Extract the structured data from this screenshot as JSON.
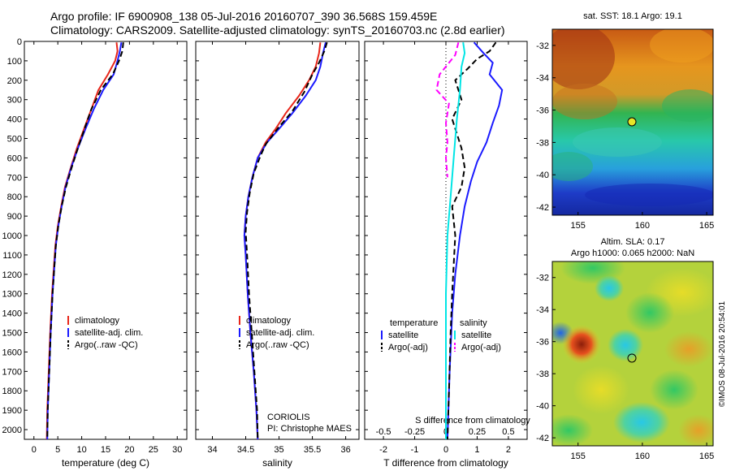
{
  "figure": {
    "title_line1": "Argo profile: IF 6900908_138 05-Jul-2016 20160707_390 36.568S 159.459E",
    "title_line2": "Climatology: CARS2009. Satellite-adjusted climatology: synTS_20160703.nc (2.8d earlier)",
    "credit": "©IMOS 08-Jul-2016 20:54:01",
    "colors": {
      "climatology": "#e8261a",
      "satellite": "#1a1aff",
      "argo": "#000000",
      "sat_salinity": "#00e5e5",
      "argo_salinity": "#ff00ff"
    }
  },
  "chart_data": [
    {
      "type": "line",
      "panel": "temperature",
      "xlabel": "temperature (deg C)",
      "ylabel": "",
      "xlim": [
        -2,
        32
      ],
      "ylim": [
        2050,
        0
      ],
      "xticks": [
        "0",
        "5",
        "10",
        "15",
        "20",
        "25",
        "30"
      ],
      "yticks": [
        "0",
        "100",
        "200",
        "300",
        "400",
        "500",
        "600",
        "700",
        "800",
        "900",
        "1000",
        "1100",
        "1200",
        "1300",
        "1400",
        "1500",
        "1600",
        "1700",
        "1800",
        "1900",
        "2000"
      ],
      "legend": [
        "climatology",
        "satellite-adj. clim.",
        "Argo(..raw -QC)"
      ],
      "series": [
        {
          "name": "climatology",
          "style": "solid",
          "color": "#e8261a",
          "points": [
            [
              17.3,
              5
            ],
            [
              17.5,
              50
            ],
            [
              17,
              100
            ],
            [
              15.5,
              170
            ],
            [
              13.5,
              250
            ],
            [
              12,
              350
            ],
            [
              10.5,
              450
            ],
            [
              9,
              550
            ],
            [
              7.7,
              650
            ],
            [
              6.5,
              750
            ],
            [
              5.7,
              850
            ],
            [
              5,
              950
            ],
            [
              4.5,
              1050
            ],
            [
              4.2,
              1150
            ],
            [
              3.8,
              1300
            ],
            [
              3.4,
              1500
            ],
            [
              3.1,
              1700
            ],
            [
              2.8,
              1900
            ],
            [
              2.7,
              2050
            ]
          ]
        },
        {
          "name": "satellite-adj. clim.",
          "style": "solid",
          "color": "#1a1aff",
          "points": [
            [
              18.3,
              5
            ],
            [
              18,
              50
            ],
            [
              17.5,
              100
            ],
            [
              16.7,
              170
            ],
            [
              14.5,
              250
            ],
            [
              12.5,
              350
            ],
            [
              10.8,
              450
            ],
            [
              9.2,
              550
            ],
            [
              7.8,
              650
            ],
            [
              6.6,
              750
            ],
            [
              5.8,
              850
            ],
            [
              5.1,
              950
            ],
            [
              4.6,
              1050
            ],
            [
              4.3,
              1150
            ],
            [
              3.9,
              1300
            ],
            [
              3.5,
              1500
            ],
            [
              3.2,
              1700
            ],
            [
              2.9,
              1900
            ],
            [
              2.8,
              2050
            ]
          ]
        },
        {
          "name": "Argo(..raw -QC)",
          "style": "dash",
          "color": "#000000",
          "points": [
            [
              18.7,
              5
            ],
            [
              18.5,
              50
            ],
            [
              17.8,
              100
            ],
            [
              16.5,
              170
            ],
            [
              14,
              250
            ],
            [
              12,
              350
            ],
            [
              10.6,
              450
            ],
            [
              9.2,
              550
            ],
            [
              7.9,
              650
            ],
            [
              6.7,
              750
            ],
            [
              5.8,
              850
            ],
            [
              5.1,
              950
            ],
            [
              4.6,
              1050
            ],
            [
              4.3,
              1150
            ],
            [
              3.9,
              1300
            ],
            [
              3.5,
              1500
            ],
            [
              3.2,
              1700
            ],
            [
              2.9,
              1900
            ],
            [
              2.8,
              2050
            ]
          ]
        }
      ]
    },
    {
      "type": "line",
      "panel": "salinity",
      "xlabel": "salinity",
      "ylabel": "",
      "xlim": [
        33.75,
        36.2
      ],
      "ylim": [
        2050,
        0
      ],
      "xticks": [
        "34",
        "34.5",
        "35",
        "35.5",
        "36"
      ],
      "legend": [
        "climatology",
        "satellite-adj. clim.",
        "Argo(..raw -QC)"
      ],
      "annotation": [
        "CORIOLIS",
        "PI: Christophe MAES"
      ],
      "series": [
        {
          "name": "climatology",
          "style": "solid",
          "color": "#e8261a",
          "points": [
            [
              35.62,
              5
            ],
            [
              35.6,
              60
            ],
            [
              35.55,
              130
            ],
            [
              35.45,
              200
            ],
            [
              35.3,
              280
            ],
            [
              35.1,
              370
            ],
            [
              34.95,
              450
            ],
            [
              34.8,
              520
            ],
            [
              34.68,
              600
            ],
            [
              34.6,
              700
            ],
            [
              34.54,
              800
            ],
            [
              34.5,
              900
            ],
            [
              34.48,
              1000
            ],
            [
              34.5,
              1100
            ],
            [
              34.53,
              1300
            ],
            [
              34.57,
              1500
            ],
            [
              34.62,
              1700
            ],
            [
              34.66,
              1900
            ],
            [
              34.68,
              2050
            ]
          ]
        },
        {
          "name": "satellite-adj. clim.",
          "style": "solid",
          "color": "#1a1aff",
          "points": [
            [
              35.7,
              5
            ],
            [
              35.66,
              60
            ],
            [
              35.62,
              130
            ],
            [
              35.55,
              200
            ],
            [
              35.4,
              280
            ],
            [
              35.2,
              370
            ],
            [
              35.0,
              450
            ],
            [
              34.82,
              520
            ],
            [
              34.68,
              600
            ],
            [
              34.6,
              700
            ],
            [
              34.54,
              800
            ],
            [
              34.5,
              900
            ],
            [
              34.48,
              1000
            ],
            [
              34.5,
              1100
            ],
            [
              34.53,
              1300
            ],
            [
              34.57,
              1500
            ],
            [
              34.62,
              1700
            ],
            [
              34.66,
              1900
            ],
            [
              34.68,
              2050
            ]
          ]
        },
        {
          "name": "Argo(..raw -QC)",
          "style": "dash",
          "color": "#000000",
          "points": [
            [
              35.72,
              5
            ],
            [
              35.68,
              50
            ],
            [
              35.6,
              110
            ],
            [
              35.5,
              170
            ],
            [
              35.38,
              260
            ],
            [
              35.2,
              360
            ],
            [
              35.0,
              440
            ],
            [
              34.8,
              530
            ],
            [
              34.72,
              590
            ],
            [
              34.62,
              680
            ],
            [
              34.56,
              780
            ],
            [
              34.52,
              880
            ],
            [
              34.5,
              980
            ],
            [
              34.52,
              1100
            ],
            [
              34.55,
              1300
            ],
            [
              34.59,
              1500
            ],
            [
              34.63,
              1700
            ],
            [
              34.67,
              1900
            ],
            [
              34.68,
              2050
            ]
          ]
        }
      ]
    },
    {
      "type": "line",
      "panel": "difference",
      "xlabel": "T difference from climatology",
      "xlabel2": "S difference from climatology",
      "xlim": [
        -2.6,
        2.6
      ],
      "ylim": [
        2050,
        0
      ],
      "xticks": [
        "-2",
        "-1",
        "0",
        "1",
        "2"
      ],
      "xticks_s": [
        "-0.5",
        "-0.25",
        "0",
        "0.25",
        "0.5"
      ],
      "legend_titles": [
        "temperature",
        "salinity"
      ],
      "legend_t": [
        "satellite",
        "Argo(-adj)"
      ],
      "legend_s": [
        "satellite",
        "Argo(-adj)"
      ],
      "series": [
        {
          "name": "temperature satellite",
          "style": "solid",
          "color": "#1a1aff",
          "points": [
            [
              0.9,
              5
            ],
            [
              1.2,
              60
            ],
            [
              1.5,
              110
            ],
            [
              1.4,
              170
            ],
            [
              1.8,
              250
            ],
            [
              1.7,
              330
            ],
            [
              1.5,
              420
            ],
            [
              1.3,
              520
            ],
            [
              1.0,
              620
            ],
            [
              0.8,
              720
            ],
            [
              0.6,
              850
            ],
            [
              0.45,
              1000
            ],
            [
              0.3,
              1200
            ],
            [
              0.2,
              1400
            ],
            [
              0.12,
              1700
            ],
            [
              0.05,
              2050
            ]
          ]
        },
        {
          "name": "temperature Argo(-adj)",
          "style": "dash",
          "color": "#000000",
          "points": [
            [
              1.6,
              5
            ],
            [
              1.4,
              50
            ],
            [
              1.0,
              90
            ],
            [
              0.7,
              140
            ],
            [
              0.3,
              200
            ],
            [
              0.5,
              300
            ],
            [
              0.2,
              400
            ],
            [
              0.5,
              550
            ],
            [
              0.6,
              650
            ],
            [
              0.5,
              750
            ],
            [
              0.2,
              850
            ],
            [
              0.3,
              1000
            ],
            [
              0.2,
              1300
            ],
            [
              0.15,
              1500
            ],
            [
              0.1,
              1800
            ],
            [
              0.05,
              2050
            ]
          ]
        },
        {
          "name": "salinity satellite",
          "style": "solid",
          "color": "#00e5e5",
          "points": [
            [
              0.55,
              5
            ],
            [
              0.6,
              60
            ],
            [
              0.5,
              130
            ],
            [
              0.45,
              250
            ],
            [
              0.35,
              400
            ],
            [
              0.25,
              600
            ],
            [
              0.15,
              800
            ],
            [
              0.05,
              1000
            ],
            [
              0,
              1300
            ],
            [
              0,
              2050
            ]
          ]
        },
        {
          "name": "salinity Argo(-adj)",
          "style": "dash",
          "color": "#ff00ff",
          "points": [
            [
              0.4,
              5
            ],
            [
              0.3,
              70
            ],
            [
              -0.2,
              170
            ],
            [
              -0.3,
              250
            ],
            [
              0.1,
              320
            ],
            [
              0,
              420
            ],
            [
              0.05,
              520
            ],
            [
              0,
              600
            ],
            [
              0.05,
              700
            ]
          ]
        }
      ]
    },
    {
      "type": "heatmap",
      "panel": "sst_map",
      "title": "sat. SST: 18.1  Argo: 19.1",
      "xticks": [
        "155",
        "160",
        "165"
      ],
      "yticks": [
        "-32",
        "-34",
        "-36",
        "-38",
        "-40",
        "-42"
      ],
      "xlim": [
        153,
        165.5
      ],
      "ylim": [
        -42.5,
        -31
      ],
      "marker": [
        159.459,
        -36.568
      ]
    },
    {
      "type": "heatmap",
      "panel": "sla_map",
      "title": "Altim. SLA: 0.17",
      "subtitle": "Argo h1000: 0.065 h2000: NaN",
      "xticks": [
        "155",
        "160",
        "165"
      ],
      "yticks": [
        "-32",
        "-34",
        "-36",
        "-38",
        "-40",
        "-42"
      ],
      "xlim": [
        153,
        165.5
      ],
      "ylim": [
        -42.5,
        -31
      ],
      "marker": [
        159.459,
        -36.568
      ]
    }
  ]
}
